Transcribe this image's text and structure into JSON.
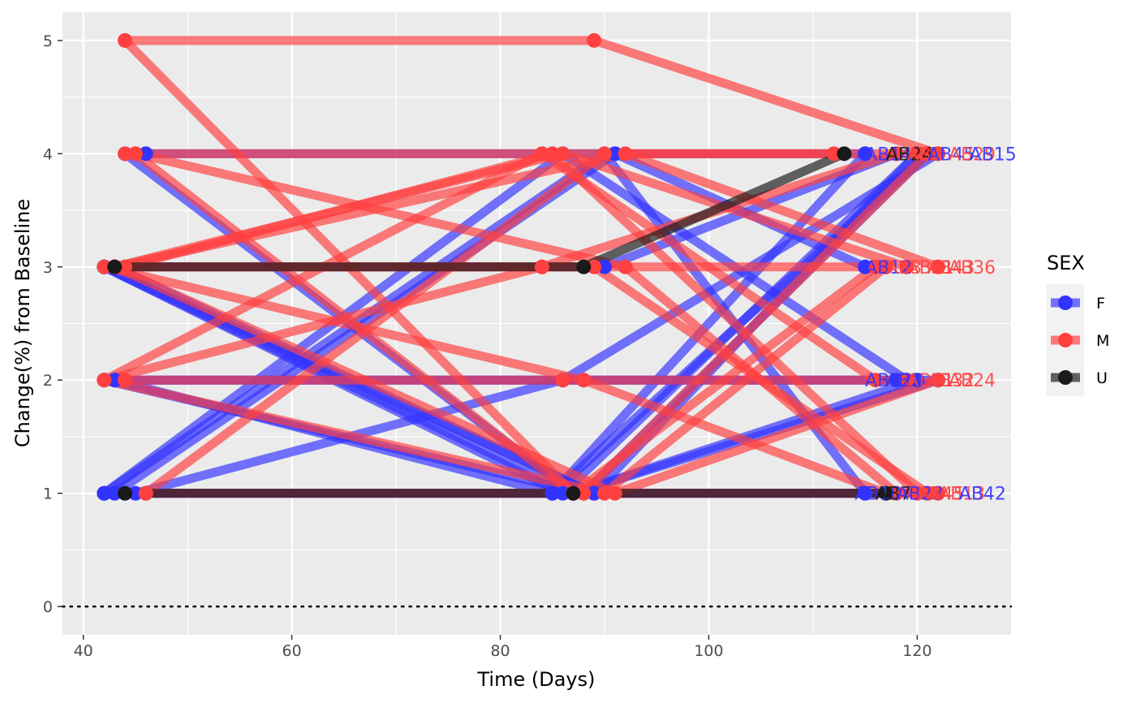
{
  "chart_data": {
    "type": "line",
    "title": "",
    "xlabel": "Time (Days)",
    "ylabel": "Change(%) from Baseline",
    "xlim": [
      38,
      129
    ],
    "ylim": [
      -0.25,
      5.25
    ],
    "x_ticks": [
      "40",
      "60",
      "80",
      "100",
      "120"
    ],
    "y_ticks": [
      "0",
      "1",
      "2",
      "3",
      "4",
      "5"
    ],
    "grid": true,
    "reference_line": {
      "y": 0,
      "style": "dotted"
    },
    "legend": {
      "title": "SEX",
      "position": "right",
      "entries": [
        {
          "label": "F",
          "color": "#3333ff"
        },
        {
          "label": "M",
          "color": "#ff4040"
        },
        {
          "label": "U",
          "color": "#1a1a1a"
        }
      ]
    },
    "series": [
      {
        "group": "F",
        "x": [
          42,
          86,
          120
        ],
        "values": [
          3,
          1,
          4
        ]
      },
      {
        "group": "F",
        "x": [
          44,
          87,
          122
        ],
        "values": [
          4,
          1,
          2
        ]
      },
      {
        "group": "F",
        "x": [
          42,
          90,
          115
        ],
        "values": [
          1,
          4,
          1
        ]
      },
      {
        "group": "F",
        "x": [
          43,
          88,
          118
        ],
        "values": [
          2,
          2,
          2
        ]
      },
      {
        "group": "F",
        "x": [
          42,
          85,
          121
        ],
        "values": [
          1,
          1,
          1
        ]
      },
      {
        "group": "F",
        "x": [
          46,
          91,
          115
        ],
        "values": [
          4,
          4,
          3
        ]
      },
      {
        "group": "F",
        "x": [
          42,
          89,
          120
        ],
        "values": [
          3,
          1,
          1
        ]
      },
      {
        "group": "F",
        "x": [
          43,
          85,
          115
        ],
        "values": [
          2,
          1,
          4
        ]
      },
      {
        "group": "F",
        "x": [
          42,
          86,
          119
        ],
        "values": [
          1,
          4,
          2
        ]
      },
      {
        "group": "F",
        "x": [
          42,
          90,
          118
        ],
        "values": [
          3,
          3,
          4
        ]
      },
      {
        "group": "F",
        "x": [
          45,
          86,
          122
        ],
        "values": [
          1,
          2,
          4
        ]
      },
      {
        "group": "F",
        "x": [
          42,
          88,
          121
        ],
        "values": [
          2,
          1,
          4
        ]
      },
      {
        "group": "F",
        "x": [
          43,
          91,
          115
        ],
        "values": [
          1,
          4,
          4
        ]
      },
      {
        "group": "F",
        "x": [
          42,
          87,
          120
        ],
        "values": [
          3,
          1,
          2
        ]
      },
      {
        "group": "F",
        "x": [
          44,
          85,
          121
        ],
        "values": [
          1,
          1,
          4
        ]
      },
      {
        "group": "F",
        "x": [
          46,
          87,
          115
        ],
        "values": [
          1,
          1,
          1
        ]
      },
      {
        "group": "F",
        "x": [
          42,
          86,
          122
        ],
        "values": [
          2,
          2,
          2
        ]
      },
      {
        "group": "F",
        "x": [
          43,
          89,
          120
        ],
        "values": [
          3,
          1,
          4
        ]
      },
      {
        "group": "M",
        "x": [
          44,
          89,
          122
        ],
        "values": [
          5,
          5,
          4
        ]
      },
      {
        "group": "M",
        "x": [
          44,
          84,
          112
        ],
        "values": [
          4,
          4,
          4
        ]
      },
      {
        "group": "M",
        "x": [
          43,
          84,
          117
        ],
        "values": [
          3,
          3,
          3
        ]
      },
      {
        "group": "M",
        "x": [
          44,
          87,
          122
        ],
        "values": [
          5,
          1,
          1
        ]
      },
      {
        "group": "M",
        "x": [
          45,
          92,
          118
        ],
        "values": [
          4,
          3,
          1
        ]
      },
      {
        "group": "M",
        "x": [
          42,
          84,
          116
        ],
        "values": [
          2,
          4,
          2
        ]
      },
      {
        "group": "M",
        "x": [
          43,
          86,
          119
        ],
        "values": [
          3,
          4,
          3
        ]
      },
      {
        "group": "M",
        "x": [
          46,
          88,
          121
        ],
        "values": [
          1,
          1,
          4
        ]
      },
      {
        "group": "M",
        "x": [
          42,
          90,
          117
        ],
        "values": [
          2,
          1,
          3
        ]
      },
      {
        "group": "M",
        "x": [
          44,
          85,
          120
        ],
        "values": [
          3,
          4,
          1
        ]
      },
      {
        "group": "M",
        "x": [
          43,
          91,
          122
        ],
        "values": [
          3,
          1,
          2
        ]
      },
      {
        "group": "M",
        "x": [
          42,
          84,
          118
        ],
        "values": [
          2,
          3,
          4
        ]
      },
      {
        "group": "M",
        "x": [
          45,
          87,
          116
        ],
        "values": [
          4,
          1,
          3
        ]
      },
      {
        "group": "M",
        "x": [
          43,
          89,
          121
        ],
        "values": [
          3,
          3,
          1
        ]
      },
      {
        "group": "M",
        "x": [
          44,
          86,
          119
        ],
        "values": [
          2,
          2,
          2
        ]
      },
      {
        "group": "M",
        "x": [
          42,
          88,
          117
        ],
        "values": [
          3,
          2,
          1
        ]
      },
      {
        "group": "M",
        "x": [
          46,
          90,
          120
        ],
        "values": [
          1,
          4,
          4
        ]
      },
      {
        "group": "M",
        "x": [
          43,
          92,
          122
        ],
        "values": [
          3,
          4,
          3
        ]
      },
      {
        "group": "U",
        "x": [
          43,
          88,
          113
        ],
        "values": [
          3,
          3,
          4
        ]
      },
      {
        "group": "U",
        "x": [
          44,
          87,
          117
        ],
        "values": [
          1,
          1,
          1
        ]
      }
    ],
    "end_labels": [
      {
        "text": "AB14",
        "x": 115,
        "y": 4,
        "group": "F"
      },
      {
        "text": "AB24",
        "x": 117,
        "y": 4,
        "group": "U"
      },
      {
        "text": "AB3",
        "x": 119,
        "y": 4,
        "group": "M"
      },
      {
        "text": "AB45",
        "x": 121,
        "y": 4,
        "group": "F"
      },
      {
        "text": "AB29",
        "x": 123,
        "y": 4,
        "group": "M"
      },
      {
        "text": "AB15",
        "x": 125,
        "y": 4,
        "group": "F"
      },
      {
        "text": "AB12",
        "x": 115,
        "y": 3,
        "group": "F"
      },
      {
        "text": "AB3",
        "x": 117,
        "y": 3,
        "group": "M"
      },
      {
        "text": "AB21",
        "x": 119,
        "y": 3,
        "group": "M"
      },
      {
        "text": "AB43",
        "x": 121,
        "y": 3,
        "group": "M"
      },
      {
        "text": "AB36",
        "x": 123,
        "y": 3,
        "group": "M"
      },
      {
        "text": "AB12",
        "x": 115,
        "y": 2,
        "group": "F"
      },
      {
        "text": "AB1",
        "x": 117,
        "y": 2,
        "group": "F"
      },
      {
        "text": "AB41",
        "x": 119,
        "y": 2,
        "group": "M"
      },
      {
        "text": "AB32",
        "x": 121,
        "y": 2,
        "group": "M"
      },
      {
        "text": "AB24",
        "x": 123,
        "y": 2,
        "group": "M"
      },
      {
        "text": "AB10",
        "x": 114,
        "y": 1,
        "group": "F"
      },
      {
        "text": "AB7",
        "x": 116,
        "y": 1,
        "group": "U"
      },
      {
        "text": "AB23",
        "x": 118,
        "y": 1,
        "group": "F"
      },
      {
        "text": "AB45",
        "x": 120,
        "y": 1,
        "group": "M"
      },
      {
        "text": "AB13",
        "x": 122,
        "y": 1,
        "group": "M"
      },
      {
        "text": "AB42",
        "x": 124,
        "y": 1,
        "group": "F"
      }
    ]
  }
}
